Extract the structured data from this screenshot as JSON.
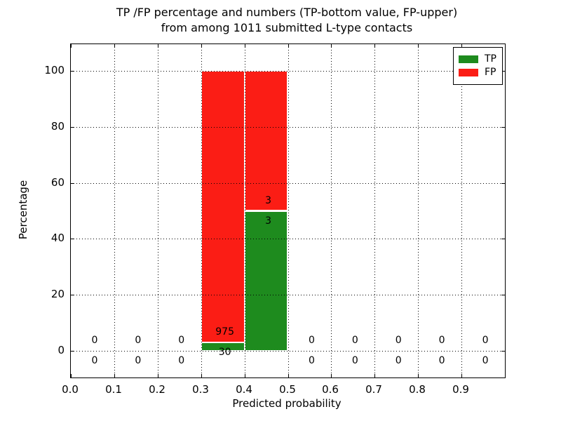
{
  "chart_data": {
    "type": "bar",
    "stacked": true,
    "title_lines": [
      "TP /FP percentage and numbers (TP-bottom value, FP-upper)",
      "from among 1011 submitted L-type contacts"
    ],
    "xlabel": "Predicted probability",
    "ylabel": "Percentage",
    "xlim": [
      0.0,
      1.0
    ],
    "ylim": [
      -9.5,
      109.5
    ],
    "xticks": [
      0.0,
      0.1,
      0.2,
      0.3,
      0.4,
      0.5,
      0.6,
      0.7,
      0.8,
      0.9
    ],
    "xtick_labels": [
      "0.0",
      "0.1",
      "0.2",
      "0.3",
      "0.4",
      "0.5",
      "0.6",
      "0.7",
      "0.8",
      "0.9"
    ],
    "yticks": [
      0,
      20,
      40,
      60,
      80,
      100
    ],
    "grid": "dotted",
    "legend_position": "upper right",
    "total_contacts": 1011,
    "series": [
      {
        "name": "TP",
        "color": "#1e8b1e"
      },
      {
        "name": "FP",
        "color": "#fb1d15"
      }
    ],
    "bins": [
      {
        "range": [
          0.0,
          0.1
        ],
        "tp": 0,
        "fp": 0,
        "tp_pct": 0,
        "fp_pct": 0
      },
      {
        "range": [
          0.1,
          0.2
        ],
        "tp": 0,
        "fp": 0,
        "tp_pct": 0,
        "fp_pct": 0
      },
      {
        "range": [
          0.2,
          0.3
        ],
        "tp": 0,
        "fp": 0,
        "tp_pct": 0,
        "fp_pct": 0
      },
      {
        "range": [
          0.3,
          0.4
        ],
        "tp": 30,
        "fp": 975,
        "tp_pct": 2.99,
        "fp_pct": 97.01
      },
      {
        "range": [
          0.4,
          0.5
        ],
        "tp": 3,
        "fp": 3,
        "tp_pct": 50,
        "fp_pct": 50
      },
      {
        "range": [
          0.5,
          0.6
        ],
        "tp": 0,
        "fp": 0,
        "tp_pct": 0,
        "fp_pct": 0
      },
      {
        "range": [
          0.6,
          0.7
        ],
        "tp": 0,
        "fp": 0,
        "tp_pct": 0,
        "fp_pct": 0
      },
      {
        "range": [
          0.7,
          0.8
        ],
        "tp": 0,
        "fp": 0,
        "tp_pct": 0,
        "fp_pct": 0
      },
      {
        "range": [
          0.8,
          0.9
        ],
        "tp": 0,
        "fp": 0,
        "tp_pct": 0,
        "fp_pct": 0
      },
      {
        "range": [
          0.9,
          1.0
        ],
        "tp": 0,
        "fp": 0,
        "tp_pct": 0,
        "fp_pct": 0
      }
    ]
  }
}
